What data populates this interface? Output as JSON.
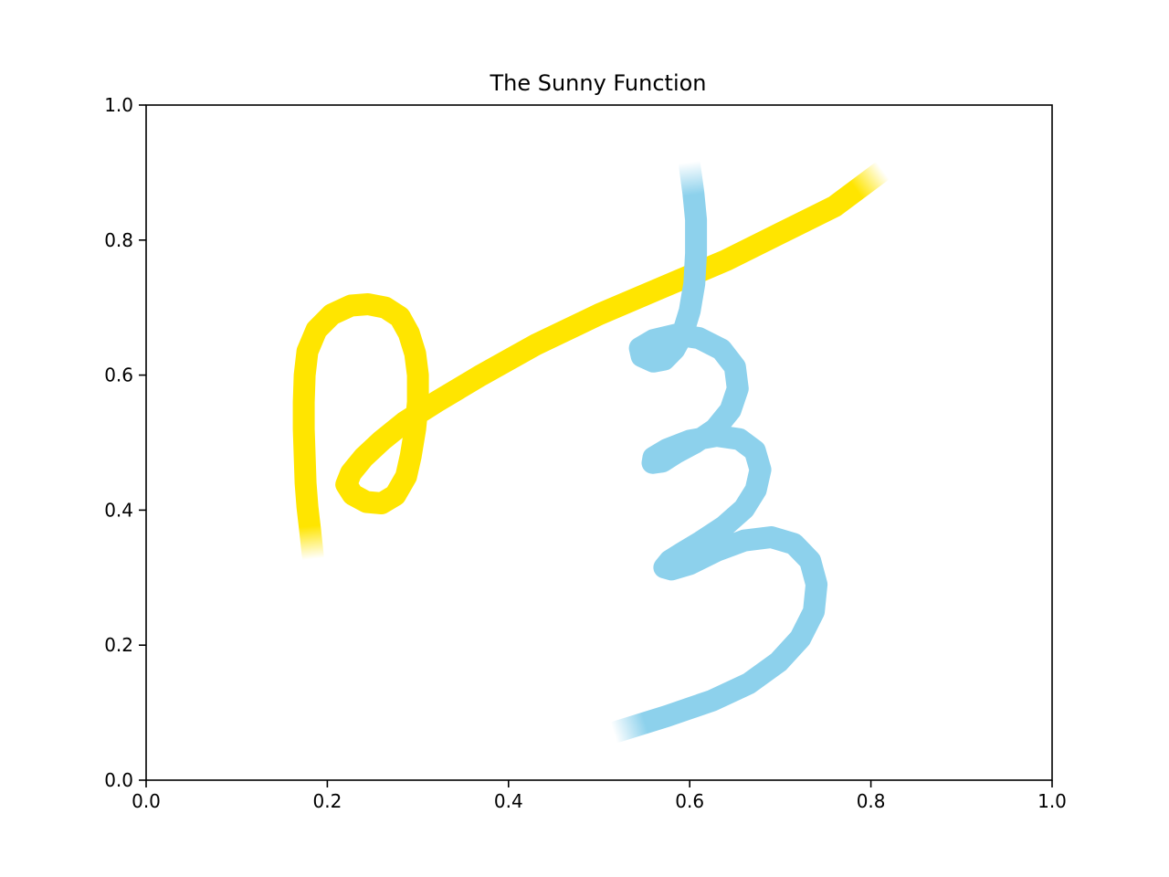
{
  "chart_data": {
    "type": "line",
    "title": "The Sunny Function",
    "xlabel": "",
    "ylabel": "",
    "xlim": [
      0.0,
      1.0
    ],
    "ylim": [
      0.0,
      1.0
    ],
    "x_ticks": [
      "0.0",
      "0.2",
      "0.4",
      "0.6",
      "0.8",
      "1.0"
    ],
    "y_ticks": [
      "0.0",
      "0.2",
      "0.4",
      "0.6",
      "0.8",
      "1.0"
    ],
    "grid": false,
    "legend": "none",
    "series": [
      {
        "color": "#FFE500",
        "fade_ends": true,
        "points": [
          [
            0.184,
            0.333
          ],
          [
            0.181,
            0.37
          ],
          [
            0.178,
            0.405
          ],
          [
            0.176,
            0.44
          ],
          [
            0.175,
            0.48
          ],
          [
            0.174,
            0.52
          ],
          [
            0.174,
            0.56
          ],
          [
            0.175,
            0.6
          ],
          [
            0.178,
            0.635
          ],
          [
            0.188,
            0.667
          ],
          [
            0.205,
            0.69
          ],
          [
            0.226,
            0.703
          ],
          [
            0.245,
            0.705
          ],
          [
            0.264,
            0.7
          ],
          [
            0.28,
            0.686
          ],
          [
            0.29,
            0.662
          ],
          [
            0.297,
            0.632
          ],
          [
            0.3,
            0.6
          ],
          [
            0.3,
            0.56
          ],
          [
            0.297,
            0.52
          ],
          [
            0.292,
            0.48
          ],
          [
            0.287,
            0.45
          ],
          [
            0.275,
            0.422
          ],
          [
            0.26,
            0.41
          ],
          [
            0.243,
            0.412
          ],
          [
            0.228,
            0.423
          ],
          [
            0.221,
            0.438
          ],
          [
            0.226,
            0.455
          ],
          [
            0.24,
            0.478
          ],
          [
            0.26,
            0.503
          ],
          [
            0.285,
            0.53
          ],
          [
            0.32,
            0.56
          ],
          [
            0.37,
            0.6
          ],
          [
            0.43,
            0.645
          ],
          [
            0.5,
            0.69
          ],
          [
            0.57,
            0.73
          ],
          [
            0.64,
            0.77
          ],
          [
            0.7,
            0.81
          ],
          [
            0.76,
            0.85
          ],
          [
            0.81,
            0.9
          ]
        ]
      },
      {
        "color": "#8DD1EC",
        "fade_ends": true,
        "points": [
          [
            0.6,
            0.91
          ],
          [
            0.604,
            0.87
          ],
          [
            0.607,
            0.83
          ],
          [
            0.607,
            0.78
          ],
          [
            0.605,
            0.735
          ],
          [
            0.6,
            0.695
          ],
          [
            0.592,
            0.66
          ],
          [
            0.583,
            0.638
          ],
          [
            0.572,
            0.623
          ],
          [
            0.56,
            0.62
          ],
          [
            0.547,
            0.628
          ],
          [
            0.545,
            0.64
          ],
          [
            0.56,
            0.652
          ],
          [
            0.585,
            0.66
          ],
          [
            0.61,
            0.655
          ],
          [
            0.635,
            0.638
          ],
          [
            0.65,
            0.612
          ],
          [
            0.653,
            0.58
          ],
          [
            0.645,
            0.548
          ],
          [
            0.628,
            0.52
          ],
          [
            0.606,
            0.5
          ],
          [
            0.585,
            0.485
          ],
          [
            0.57,
            0.472
          ],
          [
            0.559,
            0.47
          ],
          [
            0.56,
            0.478
          ],
          [
            0.575,
            0.49
          ],
          [
            0.6,
            0.503
          ],
          [
            0.63,
            0.51
          ],
          [
            0.655,
            0.505
          ],
          [
            0.672,
            0.488
          ],
          [
            0.678,
            0.46
          ],
          [
            0.673,
            0.43
          ],
          [
            0.66,
            0.402
          ],
          [
            0.638,
            0.376
          ],
          [
            0.612,
            0.353
          ],
          [
            0.592,
            0.337
          ],
          [
            0.578,
            0.325
          ],
          [
            0.572,
            0.315
          ],
          [
            0.58,
            0.312
          ],
          [
            0.6,
            0.32
          ],
          [
            0.63,
            0.34
          ],
          [
            0.66,
            0.355
          ],
          [
            0.69,
            0.36
          ],
          [
            0.715,
            0.35
          ],
          [
            0.733,
            0.325
          ],
          [
            0.74,
            0.29
          ],
          [
            0.737,
            0.25
          ],
          [
            0.722,
            0.21
          ],
          [
            0.698,
            0.175
          ],
          [
            0.665,
            0.143
          ],
          [
            0.625,
            0.118
          ],
          [
            0.575,
            0.095
          ],
          [
            0.52,
            0.072
          ]
        ]
      }
    ]
  }
}
